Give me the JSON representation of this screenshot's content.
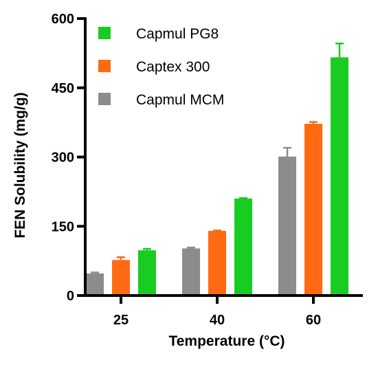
{
  "chart_data": {
    "type": "bar",
    "xlabel": "Temperature (°C)",
    "ylabel": "FEN Solubility (mg/g)",
    "categories": [
      "25",
      "40",
      "60"
    ],
    "ylim": [
      0,
      600
    ],
    "yticks": [
      0,
      150,
      300,
      450,
      600
    ],
    "grid": false,
    "legend_position": "top-left",
    "series": [
      {
        "name": "Capmul MCM",
        "color": "#8c8c8c",
        "values": [
          48,
          102,
          301
        ],
        "errors": [
          2,
          2,
          19
        ]
      },
      {
        "name": "Captex 300",
        "color": "#ff6a13",
        "values": [
          77,
          140,
          372
        ],
        "errors": [
          6,
          1,
          4
        ]
      },
      {
        "name": "Capmul PG8",
        "color": "#19cc22",
        "values": [
          98,
          210,
          516
        ],
        "errors": [
          3,
          1,
          30
        ]
      }
    ],
    "legend_order": [
      "Capmul PG8",
      "Captex 300",
      "Capmul MCM"
    ]
  }
}
